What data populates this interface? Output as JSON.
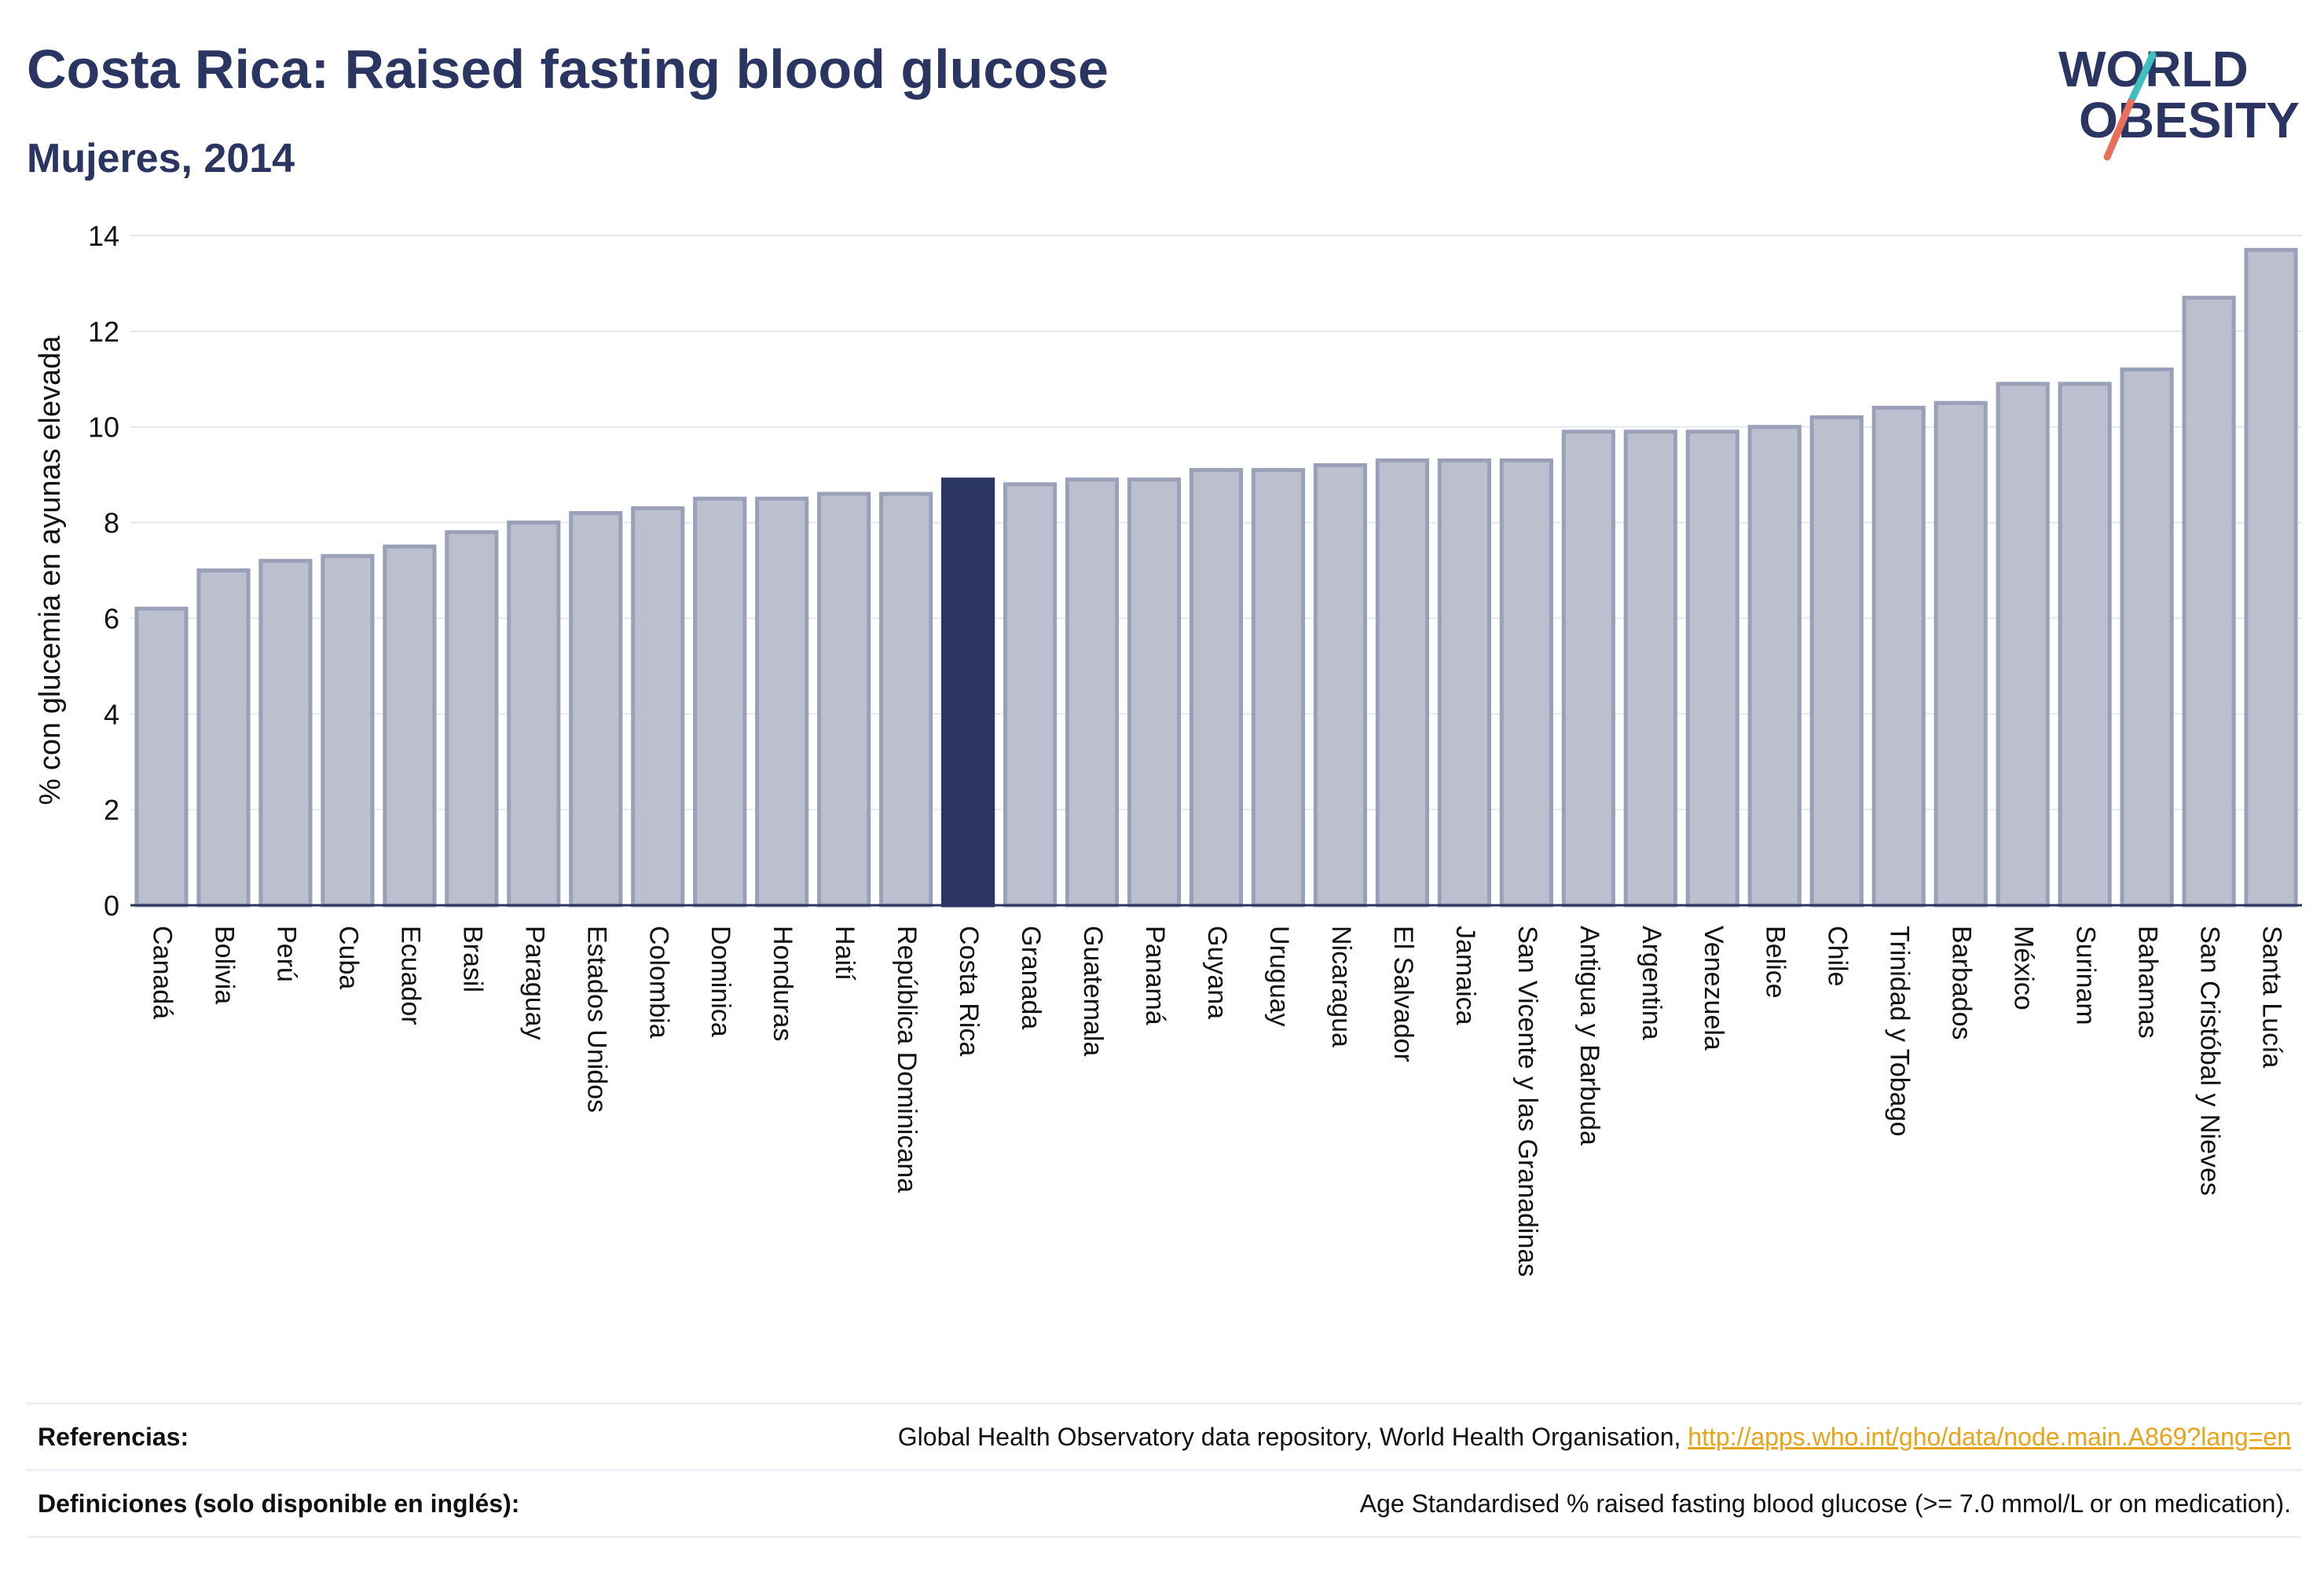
{
  "header": {
    "title": "Costa Rica: Raised fasting blood glucose",
    "subtitle": "Mujeres, 2014"
  },
  "logo": {
    "line1": "WORLD",
    "line2": "OBESITY"
  },
  "colors": {
    "highlight": "#2b3562",
    "bar_fill": "#bcc0ce",
    "bar_stroke": "#9aa0b8",
    "logo_accent_red": "#e76f5b",
    "logo_accent_teal": "#3fbfbf",
    "link": "#e8a317"
  },
  "chart_data": {
    "type": "bar",
    "title": "Costa Rica: Raised fasting blood glucose",
    "subtitle": "Mujeres, 2014",
    "xlabel": "",
    "ylabel": "% con glucemia en ayunas elevada",
    "ylim": [
      0,
      14
    ],
    "yticks": [
      0,
      2,
      4,
      6,
      8,
      10,
      12,
      14
    ],
    "grid": true,
    "highlight_category": "Costa Rica",
    "categories": [
      "Canadá",
      "Bolivia",
      "Perú",
      "Cuba",
      "Ecuador",
      "Brasil",
      "Paraguay",
      "Estados Unidos",
      "Colombia",
      "Dominica",
      "Honduras",
      "Haití",
      "República Dominicana",
      "Costa Rica",
      "Granada",
      "Guatemala",
      "Panamá",
      "Guyana",
      "Uruguay",
      "Nicaragua",
      "El Salvador",
      "Jamaica",
      "San Vicente y las Granadinas",
      "Antigua y Barbuda",
      "Argentina",
      "Venezuela",
      "Belice",
      "Chile",
      "Trinidad y Tobago",
      "Barbados",
      "México",
      "Surinam",
      "Bahamas",
      "San Cristóbal y Nieves",
      "Santa Lucía"
    ],
    "values": [
      6.2,
      7.0,
      7.2,
      7.3,
      7.5,
      7.8,
      8.0,
      8.2,
      8.3,
      8.5,
      8.5,
      8.6,
      8.6,
      8.9,
      8.8,
      8.9,
      8.9,
      9.1,
      9.1,
      9.2,
      9.3,
      9.3,
      9.3,
      9.9,
      9.9,
      9.9,
      10.0,
      10.2,
      10.4,
      10.5,
      10.9,
      10.9,
      11.2,
      12.7,
      13.7
    ]
  },
  "references": {
    "ref_label": "Referencias:",
    "ref_text": "Global Health Observatory data repository, World Health Organisation, ",
    "ref_link": "http://apps.who.int/gho/data/node.main.A869?lang=en",
    "def_label": "Definiciones (solo disponible en inglés):",
    "def_text": "Age Standardised % raised fasting blood glucose (>= 7.0 mmol/L or on medication)."
  }
}
